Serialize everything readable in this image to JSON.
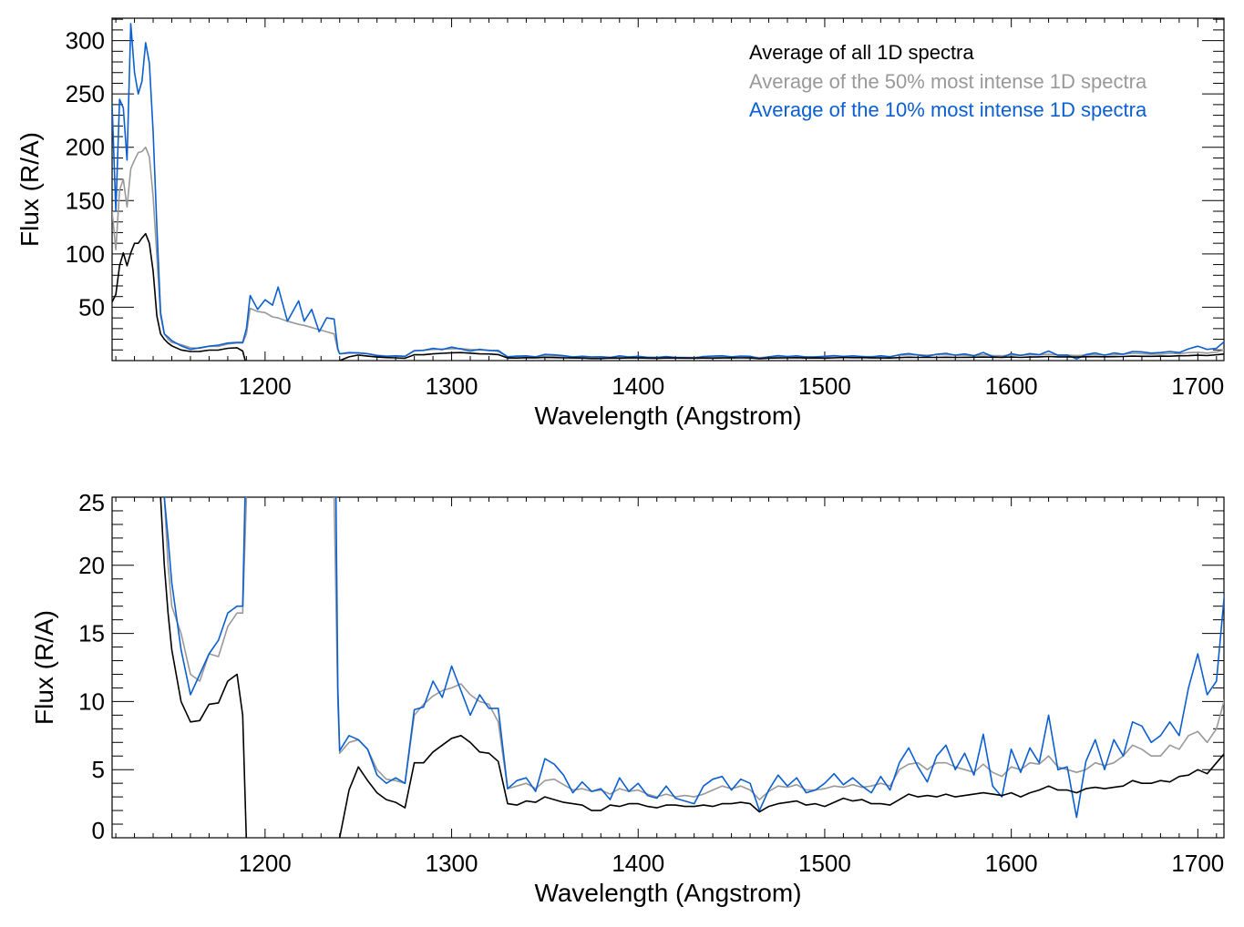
{
  "chart_data": {
    "type": "line",
    "xlabel": "Wavelength (Angstrom)",
    "ylabel": "Flux (R/A)",
    "legend": {
      "placement": "top-right (upper panel)",
      "entries": [
        {
          "label": "Average of all 1D spectra",
          "color": "#000000"
        },
        {
          "label": "Average of the 50% most intense 1D spectra",
          "color": "#999999"
        },
        {
          "label": "Average of the 10% most intense 1D spectra",
          "color": "#0b5fd0"
        }
      ]
    },
    "x": [
      1118,
      1120,
      1122,
      1124,
      1126,
      1128,
      1130,
      1132,
      1134,
      1136,
      1138,
      1140,
      1142,
      1144,
      1146,
      1148,
      1150,
      1155,
      1160,
      1165,
      1170,
      1175,
      1180,
      1185,
      1188,
      1190,
      1192,
      1196,
      1200,
      1204,
      1207,
      1212,
      1218,
      1221,
      1225,
      1229,
      1233,
      1237,
      1239,
      1240,
      1245,
      1250,
      1255,
      1260,
      1265,
      1270,
      1275,
      1280,
      1285,
      1290,
      1295,
      1300,
      1305,
      1310,
      1315,
      1320,
      1325,
      1330,
      1335,
      1340,
      1345,
      1350,
      1355,
      1360,
      1365,
      1370,
      1375,
      1380,
      1385,
      1390,
      1395,
      1400,
      1405,
      1410,
      1415,
      1420,
      1425,
      1430,
      1435,
      1440,
      1445,
      1450,
      1455,
      1460,
      1465,
      1470,
      1475,
      1480,
      1485,
      1490,
      1495,
      1500,
      1505,
      1510,
      1515,
      1520,
      1525,
      1530,
      1535,
      1540,
      1545,
      1550,
      1555,
      1560,
      1565,
      1570,
      1575,
      1580,
      1585,
      1590,
      1595,
      1600,
      1605,
      1610,
      1615,
      1620,
      1625,
      1630,
      1635,
      1640,
      1645,
      1650,
      1655,
      1660,
      1665,
      1670,
      1675,
      1680,
      1685,
      1690,
      1695,
      1700,
      1705,
      1710,
      1715
    ],
    "series": [
      {
        "name": "Average of all 1D spectra",
        "color": "#000000",
        "values": [
          55,
          62,
          89,
          101,
          89,
          101,
          110,
          110,
          115,
          119,
          110,
          84,
          42,
          25,
          20,
          16.5,
          13.8,
          10,
          8.5,
          8.6,
          9.8,
          9.9,
          11.5,
          12.0,
          9.0,
          -1,
          null,
          null,
          null,
          null,
          null,
          null,
          null,
          null,
          null,
          null,
          null,
          null,
          null,
          0,
          3.5,
          5.2,
          4.2,
          3.3,
          2.8,
          2.6,
          2.2,
          5.5,
          5.5,
          6.3,
          6.8,
          7.3,
          7.5,
          7.0,
          6.3,
          6.2,
          5.6,
          2.5,
          2.4,
          2.7,
          2.6,
          3.0,
          2.8,
          2.6,
          2.5,
          2.4,
          2.0,
          2.0,
          2.4,
          2.3,
          2.5,
          2.5,
          2.3,
          2.2,
          2.4,
          2.4,
          2.3,
          2.3,
          2.4,
          2.3,
          2.5,
          2.5,
          2.6,
          2.5,
          1.9,
          2.3,
          2.5,
          2.6,
          2.7,
          2.4,
          2.5,
          2.3,
          2.6,
          2.9,
          2.7,
          2.8,
          2.5,
          2.5,
          2.4,
          2.8,
          3.2,
          3.0,
          3.1,
          3.0,
          3.2,
          3.0,
          3.1,
          3.2,
          3.3,
          3.2,
          3.1,
          3.3,
          3.0,
          3.3,
          3.5,
          3.8,
          3.5,
          3.5,
          3.3,
          3.6,
          3.7,
          3.6,
          3.7,
          3.8,
          4.2,
          4.0,
          4.0,
          4.2,
          4.1,
          4.5,
          4.6,
          5.0,
          4.7,
          5.5,
          6.3
        ]
      },
      {
        "name": "Average of the 50% most intense 1D spectra",
        "color": "#999999",
        "values": [
          140,
          104,
          160,
          170,
          144,
          180,
          188,
          195,
          196,
          200,
          191,
          154,
          98,
          42,
          25,
          20,
          17,
          15,
          12,
          11.5,
          13.5,
          13.3,
          15.5,
          16.5,
          16.5,
          25,
          49,
          46,
          45,
          41,
          40,
          37,
          34,
          33,
          31,
          29,
          27,
          25,
          10,
          6.2,
          7.0,
          7.2,
          6.5,
          5.0,
          4.3,
          4.2,
          4.0,
          9.0,
          9.8,
          10.4,
          10.8,
          11.0,
          11.3,
          10.5,
          10.0,
          9.8,
          8.5,
          3.6,
          3.8,
          4.0,
          3.6,
          4.2,
          4.3,
          3.9,
          3.5,
          3.6,
          3.4,
          3.5,
          3.2,
          3.6,
          3.4,
          3.5,
          3.2,
          3.0,
          3.2,
          3.0,
          3.1,
          3.0,
          3.2,
          3.5,
          3.8,
          3.6,
          3.8,
          3.5,
          2.8,
          3.4,
          3.8,
          3.7,
          3.9,
          3.5,
          3.5,
          3.6,
          3.8,
          3.7,
          3.9,
          3.7,
          3.8,
          4.0,
          3.8,
          5.0,
          5.4,
          5.5,
          5.0,
          5.5,
          5.5,
          5.2,
          5.0,
          4.8,
          5.4,
          4.8,
          4.5,
          5.2,
          5.0,
          5.5,
          5.4,
          6.0,
          5.2,
          5.0,
          4.8,
          5.0,
          5.5,
          5.3,
          5.5,
          6.0,
          6.8,
          6.5,
          6.0,
          6.0,
          6.8,
          6.5,
          7.5,
          7.8,
          7.0,
          8.0,
          10.5
        ]
      },
      {
        "name": "Average of the 10% most intense 1D spectra",
        "color": "#0b5fd0",
        "values": [
          240,
          140,
          245,
          237,
          188,
          316,
          270,
          250,
          262,
          298,
          279,
          215,
          126,
          45,
          25,
          22,
          18.7,
          13.8,
          10.5,
          12,
          13.5,
          14.5,
          16.5,
          17,
          17,
          30,
          61,
          48,
          57,
          52,
          69,
          37,
          56,
          37,
          48,
          27,
          40,
          39,
          11,
          6.4,
          7.5,
          7.2,
          6.5,
          4.6,
          4.0,
          4.4,
          4.0,
          9.4,
          9.6,
          11.5,
          10.3,
          12.6,
          10.8,
          9.0,
          10.5,
          9.5,
          9.5,
          3.6,
          4.2,
          4.4,
          3.4,
          5.8,
          5.4,
          4.6,
          3.3,
          4.1,
          3.4,
          3.6,
          2.8,
          4.4,
          3.4,
          4.0,
          3.1,
          2.9,
          3.8,
          2.9,
          2.7,
          2.5,
          3.8,
          4.3,
          4.5,
          3.5,
          4.3,
          4.0,
          2.0,
          3.5,
          4.6,
          3.8,
          4.4,
          3.3,
          3.5,
          4.0,
          4.7,
          3.9,
          4.4,
          3.8,
          3.3,
          4.5,
          3.5,
          5.5,
          6.6,
          5.2,
          4.1,
          6.0,
          6.8,
          5.0,
          6.2,
          4.6,
          7.6,
          3.8,
          3.0,
          6.5,
          4.8,
          6.6,
          5.5,
          9.0,
          5.0,
          5.2,
          1.5,
          5.6,
          7.2,
          5.0,
          7.2,
          6.0,
          8.5,
          8.2,
          7.0,
          7.5,
          8.5,
          7.5,
          11.0,
          13.5,
          10.5,
          11.5,
          19
        ]
      }
    ],
    "panels": [
      {
        "name": "full-range",
        "xlim": [
          1118,
          1714
        ],
        "ylim": [
          0,
          321
        ],
        "xticks": [
          "1200",
          "1300",
          "1400",
          "1500",
          "1600",
          "1700"
        ],
        "yticks": [
          "50",
          "100",
          "150",
          "200",
          "250",
          "300"
        ],
        "xlabel": "Wavelength (Angstrom)",
        "ylabel": "Flux (R/A)",
        "grid": false
      },
      {
        "name": "zoomed",
        "xlim": [
          1118,
          1714
        ],
        "ylim": [
          0,
          25
        ],
        "xticks": [
          "1200",
          "1300",
          "1400",
          "1500",
          "1600",
          "1700"
        ],
        "yticks": [
          "0",
          "5",
          "10",
          "15",
          "20",
          "25"
        ],
        "xlabel": "Wavelength (Angstrom)",
        "ylabel": "Flux (R/A)",
        "grid": false
      }
    ]
  }
}
